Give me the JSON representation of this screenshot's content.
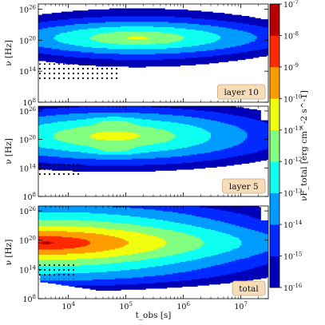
{
  "chart_data": {
    "type": "heatmap",
    "colormap": "jet",
    "x": {
      "label": "t_obs [s]",
      "scale": "log",
      "range": [
        3000,
        30000000
      ],
      "ticks": [
        {
          "value": 10000,
          "label": "10^4"
        },
        {
          "value": 100000,
          "label": "10^5"
        },
        {
          "value": 1000000,
          "label": "10^6"
        },
        {
          "value": 10000000,
          "label": "10^7"
        }
      ]
    },
    "y": {
      "label": "ν [Hz]",
      "scale": "log",
      "range": [
        100000000,
        1000000000000000000000000000
      ],
      "ticks": [
        {
          "value": 100000000,
          "label": "10^8"
        },
        {
          "value": 100000000000000,
          "label": "10^14"
        },
        {
          "value": 100000000000000000000,
          "label": "10^20"
        },
        {
          "value": 100000000000000000000000000,
          "label": "10^26"
        }
      ]
    },
    "colorbar": {
      "label": "νF_total [erg cm^-2 s^-1]",
      "scale": "log",
      "range": [
        1e-16,
        1e-07
      ],
      "ticks": [
        {
          "value": 1e-07,
          "label": "10^-7"
        },
        {
          "value": 1e-08,
          "label": "10^-8"
        },
        {
          "value": 1e-09,
          "label": "10^-9"
        },
        {
          "value": 1e-10,
          "label": "10^-10"
        },
        {
          "value": 1e-11,
          "label": "10^-11"
        },
        {
          "value": 1e-12,
          "label": "10^-12"
        },
        {
          "value": 1e-13,
          "label": "10^-13"
        },
        {
          "value": 1e-14,
          "label": "10^-14"
        },
        {
          "value": 1e-15,
          "label": "10^-15"
        },
        {
          "value": 1e-16,
          "label": "10^-16"
        }
      ]
    },
    "panels": [
      {
        "label": "layer 10",
        "peak_flux": 1e-11,
        "center": [
          5.2,
          20.5
        ],
        "shape": {
          "width_dex": 2.2,
          "height_dex": 8.0,
          "waist": 0.3,
          "lobe_sep": 3.0,
          "lobes": false,
          "decay_dex": 3.5
        },
        "edge": {
          "x_start": 3.6,
          "slope": 1.0,
          "cutoff_dex": 4.0,
          "corner": {
            "x_end": 4.6,
            "y_low": 11.5
          }
        },
        "hatch": {
          "x_max": 4.9,
          "y_min": 12.0,
          "y_max": 15.5
        }
      },
      {
        "label": "layer 5",
        "peak_flux": 1e-10,
        "center": [
          4.8,
          20.8
        ],
        "shape": {
          "width_dex": 2.0,
          "height_dex": 8.5,
          "waist": 0.35,
          "lobe_sep": 3.0,
          "lobes": true,
          "decay_dex": 3.2
        },
        "edge": {
          "x_start": 3.8,
          "slope": 1.0,
          "cutoff_dex": 4.5
        },
        "hatch": {
          "x_max": 4.2,
          "y_min": 12.0,
          "y_max": 15.0
        }
      },
      {
        "label": "total",
        "peak_flux": 1e-08,
        "center": [
          3.6,
          19.5
        ],
        "shape": {
          "width_dex": 2.5,
          "height_dex": 9.5,
          "waist": 0.2,
          "lobe_sep": 3.0,
          "lobes": false,
          "decay_dex": 3.8
        },
        "edge": {
          "x_start": 3.5,
          "slope": 0.8,
          "cutoff_dex": 5.0
        },
        "hatch": {
          "x_max": 4.1,
          "y_min": 12.0,
          "y_max": 15.0
        }
      }
    ]
  }
}
